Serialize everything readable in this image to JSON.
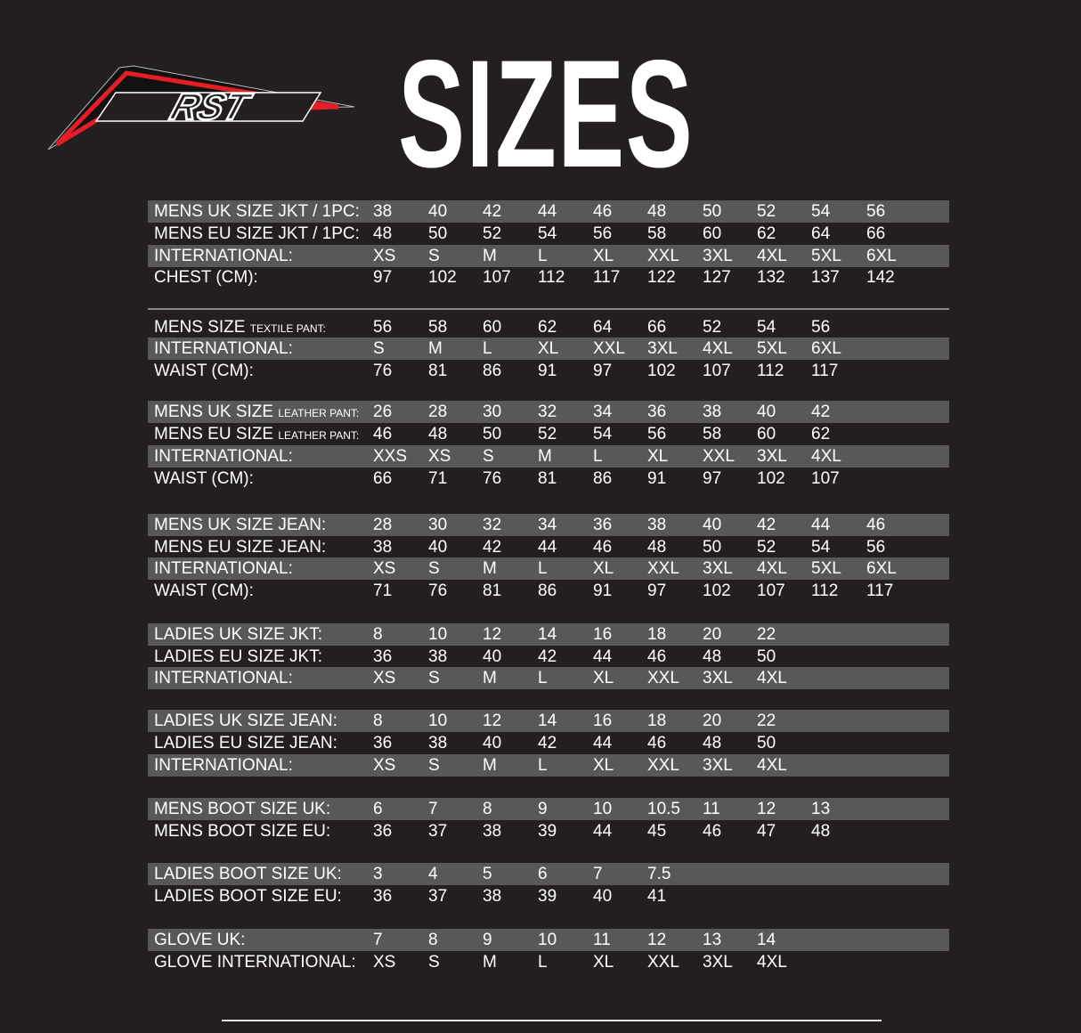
{
  "header": {
    "logo_text": "RST",
    "title": "SIZES"
  },
  "colors": {
    "background": "#231f20",
    "row_band": "#58585a",
    "logo_red": "#e31e24"
  },
  "groups": [
    {
      "rows": [
        {
          "label": "MENS UK SIZE JKT / 1PC:",
          "label_small": "",
          "values": [
            "38",
            "40",
            "42",
            "44",
            "46",
            "48",
            "50",
            "52",
            "54",
            "56"
          ]
        },
        {
          "label": "MENS EU SIZE JKT / 1PC:",
          "label_small": "",
          "values": [
            "48",
            "50",
            "52",
            "54",
            "56",
            "58",
            "60",
            "62",
            "64",
            "66"
          ]
        },
        {
          "label": "INTERNATIONAL:",
          "label_small": "",
          "values": [
            "XS",
            "S",
            "M",
            "L",
            "XL",
            "XXL",
            "3XL",
            "4XL",
            "5XL",
            "6XL"
          ]
        },
        {
          "label": "CHEST (CM):",
          "label_small": "",
          "values": [
            "97",
            "102",
            "107",
            "112",
            "117",
            "122",
            "127",
            "132",
            "137",
            "142"
          ]
        }
      ]
    },
    {
      "rows": [
        {
          "label": "MENS SIZE ",
          "label_small": "TEXTILE PANT:",
          "values": [
            "56",
            "58",
            "60",
            "62",
            "64",
            "66",
            "52",
            "54",
            "56"
          ]
        },
        {
          "label": "INTERNATIONAL:",
          "label_small": "",
          "values": [
            "S",
            "M",
            "L",
            "XL",
            "XXL",
            "3XL",
            "4XL",
            "5XL",
            "6XL"
          ]
        },
        {
          "label": "WAIST (CM):",
          "label_small": "",
          "values": [
            "76",
            "81",
            "86",
            "91",
            "97",
            "102",
            "107",
            "112",
            "117"
          ]
        }
      ]
    },
    {
      "rows": [
        {
          "label": "MENS UK SIZE ",
          "label_small": "LEATHER PANT:",
          "values": [
            "26",
            "28",
            "30",
            "32",
            "34",
            "36",
            "38",
            "40",
            "42"
          ]
        },
        {
          "label": "MENS EU SIZE ",
          "label_small": "LEATHER PANT:",
          "values": [
            "46",
            "48",
            "50",
            "52",
            "54",
            "56",
            "58",
            "60",
            "62"
          ]
        },
        {
          "label": "INTERNATIONAL:",
          "label_small": "",
          "values": [
            "XXS",
            "XS",
            "S",
            "M",
            "L",
            "XL",
            "XXL",
            "3XL",
            "4XL"
          ]
        },
        {
          "label": "WAIST (CM):",
          "label_small": "",
          "values": [
            "66",
            "71",
            "76",
            "81",
            "86",
            "91",
            "97",
            "102",
            "107"
          ]
        }
      ]
    },
    {
      "rows": [
        {
          "label": "MENS UK SIZE JEAN:",
          "label_small": "",
          "values": [
            "28",
            "30",
            "32",
            "34",
            "36",
            "38",
            "40",
            "42",
            "44",
            "46"
          ]
        },
        {
          "label": "MENS EU SIZE JEAN:",
          "label_small": "",
          "values": [
            "38",
            "40",
            "42",
            "44",
            "46",
            "48",
            "50",
            "52",
            "54",
            "56"
          ]
        },
        {
          "label": "INTERNATIONAL:",
          "label_small": "",
          "values": [
            "XS",
            "S",
            "M",
            "L",
            "XL",
            "XXL",
            "3XL",
            "4XL",
            "5XL",
            "6XL"
          ]
        },
        {
          "label": "WAIST (CM):",
          "label_small": "",
          "values": [
            "71",
            "76",
            "81",
            "86",
            "91",
            "97",
            "102",
            "107",
            "112",
            "117"
          ]
        }
      ]
    },
    {
      "rows": [
        {
          "label": "LADIES UK SIZE JKT:",
          "label_small": "",
          "values": [
            "8",
            "10",
            "12",
            "14",
            "16",
            "18",
            "20",
            "22"
          ]
        },
        {
          "label": "LADIES EU SIZE JKT:",
          "label_small": "",
          "values": [
            "36",
            "38",
            "40",
            "42",
            "44",
            "46",
            "48",
            "50"
          ]
        },
        {
          "label": "INTERNATIONAL:",
          "label_small": "",
          "values": [
            "XS",
            "S",
            "M",
            "L",
            "XL",
            "XXL",
            "3XL",
            "4XL"
          ]
        }
      ]
    },
    {
      "rows": [
        {
          "label": "LADIES UK SIZE JEAN:",
          "label_small": "",
          "values": [
            "8",
            "10",
            "12",
            "14",
            "16",
            "18",
            "20",
            "22"
          ]
        },
        {
          "label": "LADIES EU SIZE JEAN:",
          "label_small": "",
          "values": [
            "36",
            "38",
            "40",
            "42",
            "44",
            "46",
            "48",
            "50"
          ]
        },
        {
          "label": "INTERNATIONAL:",
          "label_small": "",
          "values": [
            "XS",
            "S",
            "M",
            "L",
            "XL",
            "XXL",
            "3XL",
            "4XL"
          ]
        }
      ]
    },
    {
      "rows": [
        {
          "label": "MENS BOOT SIZE UK:",
          "label_small": "",
          "values": [
            "6",
            "7",
            "8",
            "9",
            "10",
            "10.5",
            "11",
            "12",
            "13"
          ]
        },
        {
          "label": "MENS BOOT SIZE EU:",
          "label_small": "",
          "values": [
            "36",
            "37",
            "38",
            "39",
            "44",
            "45",
            "46",
            "47",
            "48"
          ]
        }
      ]
    },
    {
      "rows": [
        {
          "label": "LADIES BOOT SIZE UK:",
          "label_small": "",
          "values": [
            "3",
            "4",
            "5",
            "6",
            "7",
            "7.5"
          ]
        },
        {
          "label": "LADIES BOOT SIZE EU:",
          "label_small": "",
          "values": [
            "36",
            "37",
            "38",
            "39",
            "40",
            "41"
          ]
        }
      ]
    },
    {
      "rows": [
        {
          "label": "GLOVE UK:",
          "label_small": "",
          "values": [
            "7",
            "8",
            "9",
            "10",
            "11",
            "12",
            "13",
            "14"
          ]
        },
        {
          "label": "GLOVE INTERNATIONAL:",
          "label_small": "",
          "values": [
            "XS",
            "S",
            "M",
            "L",
            "XL",
            "XXL",
            "3XL",
            "4XL"
          ]
        }
      ]
    }
  ]
}
